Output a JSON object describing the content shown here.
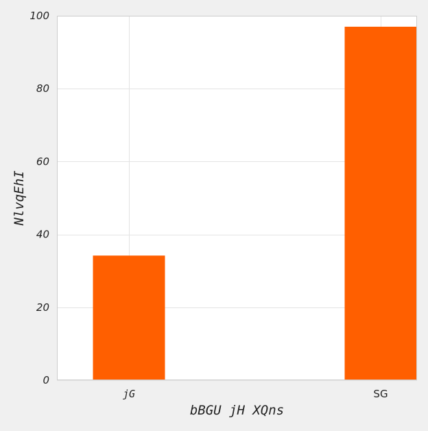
{
  "chart_data": {
    "type": "bar",
    "categories": [
      "jG",
      "SG"
    ],
    "values": [
      34.2,
      97.0
    ],
    "title": "",
    "xlabel": "bBGU  jH XQns",
    "ylabel": "NlvqEhI",
    "ylim": [
      0,
      100
    ],
    "yticks": [
      0,
      20,
      40,
      60,
      80,
      100
    ],
    "grid": true,
    "bar_color": "#ff5f00",
    "grid_color": "#e3e3e3",
    "frame_color": "#cccccc",
    "background": "#f0f0f0",
    "plot_background": "#ffffff"
  }
}
